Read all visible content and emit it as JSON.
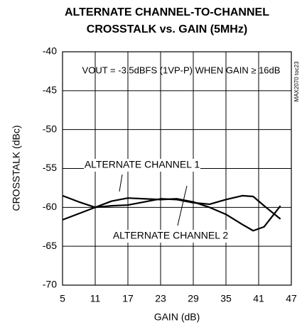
{
  "chart_data": {
    "type": "line",
    "title": "ALTERNATE CHANNEL-TO-CHANNEL",
    "subtitle": "CROSSTALK vs. GAIN (5MHz)",
    "annotation": "VOUT = -3.5dBFS (1VP-P) WHEN GAIN ≥ 16dB",
    "watermark": "MAX2070 toc23",
    "x_label": "GAIN (dB)",
    "y_label": "CROSSTALK (dBc)",
    "x": [
      5,
      8,
      11,
      14,
      17,
      20,
      23,
      26,
      29,
      32,
      35,
      38,
      40,
      42,
      45
    ],
    "series": [
      {
        "name": "ALTERNATE CHANNEL 1",
        "color": "#000000",
        "values": [
          -61.6,
          -60.8,
          -60.0,
          -59.2,
          -58.8,
          -58.9,
          -59.0,
          -58.9,
          -59.3,
          -60.0,
          -60.9,
          -62.2,
          -63.0,
          -62.5,
          -59.8
        ]
      },
      {
        "name": "ALTERNATE CHANNEL 2",
        "color": "#000000",
        "values": [
          -58.5,
          -59.3,
          -60.0,
          -59.8,
          -59.7,
          -59.3,
          -58.9,
          -59.0,
          -59.4,
          -59.6,
          -59.0,
          -58.5,
          -58.6,
          -59.8,
          -61.5
        ]
      }
    ],
    "xlim": [
      5,
      47
    ],
    "xticks": [
      5,
      11,
      17,
      23,
      29,
      35,
      41,
      47
    ],
    "ylim": [
      -70,
      -40
    ],
    "yticks": [
      -40,
      -45,
      -50,
      -55,
      -60,
      -65,
      -70
    ],
    "grid": true
  }
}
